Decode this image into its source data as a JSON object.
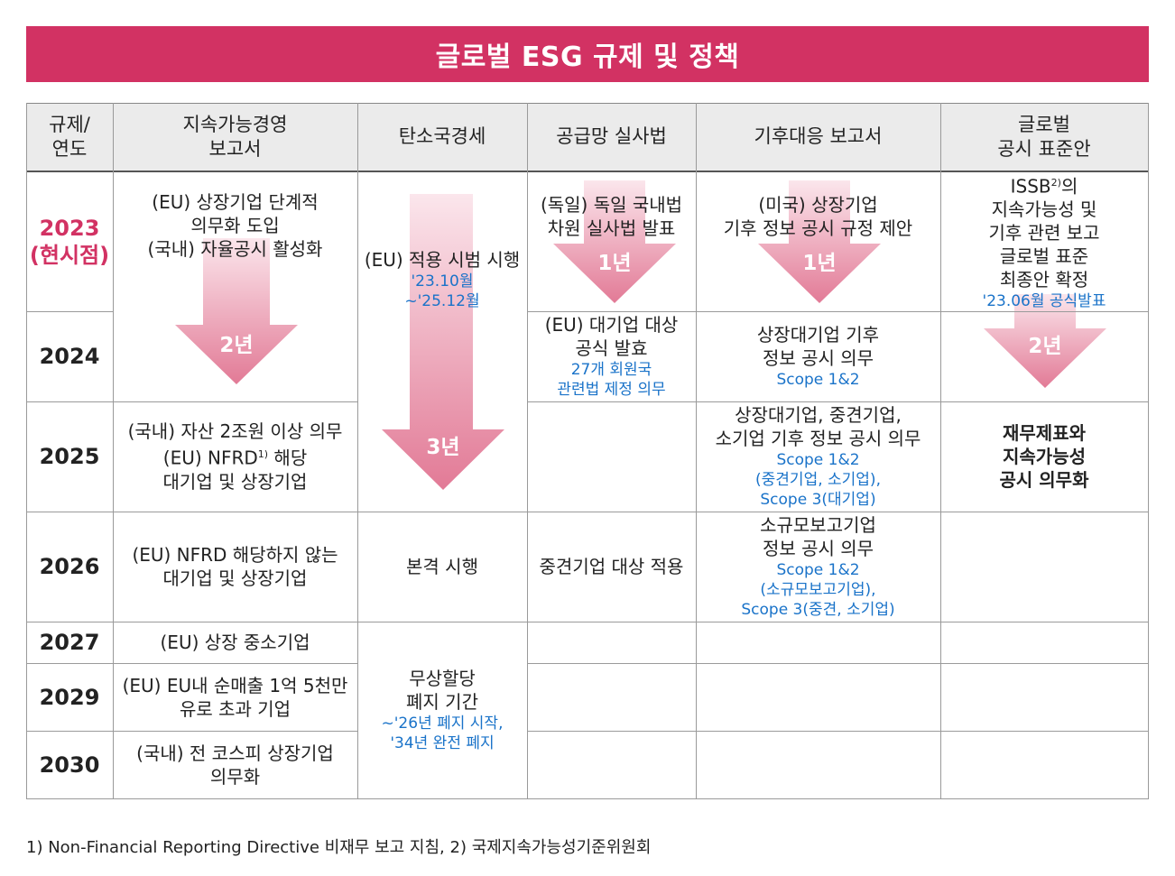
{
  "title": "글로벌 ESG 규제 및 정책",
  "colors": {
    "title_bg": "#d23263",
    "year_current": "#d23263",
    "note_blue": "#1a73c9",
    "arrow_pink": "#e8889f"
  },
  "header": {
    "col0": [
      "규제/",
      "연도"
    ],
    "col1": [
      "지속가능경영",
      "보고서"
    ],
    "col2": "탄소국경세",
    "col3": "공급망 실사법",
    "col4": "기후대응 보고서",
    "col5": [
      "글로벌",
      "공시 표준안"
    ]
  },
  "years": {
    "y2023": "2023",
    "y2023_note": "(현시점)",
    "y2024": "2024",
    "y2025": "2025",
    "y2026": "2026",
    "y2027": "2027",
    "y2029": "2029",
    "y2030": "2030"
  },
  "col1": {
    "r2023": [
      "(EU) 상장기업 단계적",
      "의무화 도입",
      "(국내) 자율공시 활성화"
    ],
    "arrow": "2년",
    "r2025_a": "(국내) 자산 2조원 이상 의무",
    "r2025_b": "(EU) NFRD",
    "r2025_b_sup": "1)",
    "r2025_b_tail": " 해당",
    "r2025_c": "대기업 및 상장기업",
    "r2026": [
      "(EU) NFRD 해당하지 않는",
      "대기업 및 상장기업"
    ],
    "r2027": "(EU) 상장 중소기업",
    "r2029": [
      "(EU) EU내 순매출 1억 5천만",
      "유로 초과 기업"
    ],
    "r2030": [
      "(국내) 전 코스피 상장기업",
      "의무화"
    ]
  },
  "col2": {
    "r2023": "(EU) 적용 시범 시행",
    "r2023_note": [
      "'23.10월",
      "~'25.12월"
    ],
    "arrow": "3년",
    "r2026": "본격 시행",
    "r2027": [
      "무상할당",
      "폐지 기간"
    ],
    "r2027_note": [
      "~'26년 폐지 시작,",
      "'34년 완전 폐지"
    ]
  },
  "col3": {
    "r2023": [
      "(독일) 독일 국내법",
      "차원 실사법 발표"
    ],
    "arrow": "1년",
    "r2024": [
      "(EU) 대기업 대상",
      "공식 발효"
    ],
    "r2024_note": [
      "27개 회원국",
      "관련법 제정 의무"
    ],
    "r2026": "중견기업 대상 적용"
  },
  "col4": {
    "r2023": [
      "(미국) 상장기업",
      "기후 정보 공시 규정 제안"
    ],
    "arrow": "1년",
    "r2024": [
      "상장대기업 기후",
      "정보 공시 의무"
    ],
    "r2024_note": "Scope 1&2",
    "r2025": [
      "상장대기업, 중견기업,",
      "소기업 기후 정보 공시 의무"
    ],
    "r2025_note": [
      "Scope 1&2",
      "(중견기업, 소기업),",
      "Scope 3(대기업)"
    ],
    "r2026": [
      "소규모보고기업",
      "정보 공시 의무"
    ],
    "r2026_note": [
      "Scope 1&2",
      "(소규모보고기업),",
      "Scope 3(중견, 소기업)"
    ]
  },
  "col5": {
    "r2023_a": "ISSB",
    "r2023_a_sup": "2)",
    "r2023_a_tail": "의",
    "r2023": [
      "지속가능성 및",
      "기후 관련 보고",
      "글로벌 표준",
      "최종안 확정"
    ],
    "r2023_note": "'23.06월 공식발표",
    "arrow": "2년",
    "r2025": [
      "재무제표와",
      "지속가능성",
      "공시 의무화"
    ]
  },
  "footnote": "1) Non-Financial Reporting Directive 비재무 보고 지침, 2) 국제지속가능성기준위원회"
}
